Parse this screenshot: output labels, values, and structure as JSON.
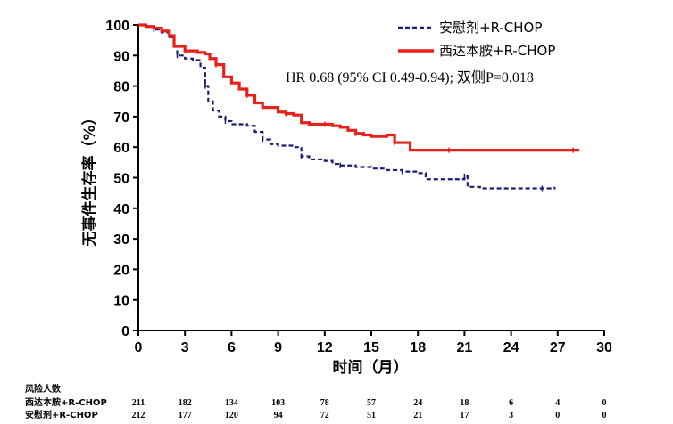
{
  "chart_data": {
    "type": "line",
    "xlabel": "时间（月）",
    "ylabel": "无事件生存率（%）",
    "xlim": [
      0,
      30
    ],
    "ylim": [
      0,
      100
    ],
    "xticks": [
      "0",
      "3",
      "6",
      "9",
      "12",
      "15",
      "18",
      "21",
      "24",
      "27",
      "30"
    ],
    "yticks": [
      "0",
      "10",
      "20",
      "30",
      "40",
      "50",
      "60",
      "70",
      "80",
      "90",
      "100"
    ],
    "annotation": "HR 0.68 (95% CI 0.49-0.94); 双侧P=0.018",
    "legend_position": "top-right",
    "series": [
      {
        "name": "安慰剂+R-CHOP",
        "color": "#1c1f6e",
        "style": "dashed",
        "points": [
          [
            0,
            100
          ],
          [
            0.5,
            99.5
          ],
          [
            1,
            98.5
          ],
          [
            1.5,
            97.5
          ],
          [
            2,
            96
          ],
          [
            2.3,
            93
          ],
          [
            2.5,
            90
          ],
          [
            3,
            89
          ],
          [
            3.5,
            88.5
          ],
          [
            4,
            86
          ],
          [
            4.3,
            80
          ],
          [
            4.5,
            75
          ],
          [
            4.8,
            72
          ],
          [
            5.2,
            70
          ],
          [
            5.6,
            68.5
          ],
          [
            6,
            67.5
          ],
          [
            7,
            67
          ],
          [
            7.5,
            65
          ],
          [
            8,
            62.5
          ],
          [
            8.5,
            61
          ],
          [
            9,
            60.5
          ],
          [
            10,
            60
          ],
          [
            10.5,
            57
          ],
          [
            11,
            56
          ],
          [
            12,
            55.5
          ],
          [
            12.5,
            54.5
          ],
          [
            13,
            54
          ],
          [
            14,
            53.5
          ],
          [
            15,
            53
          ],
          [
            16,
            52.5
          ],
          [
            17,
            52
          ],
          [
            18,
            51.5
          ],
          [
            18.5,
            49.5
          ],
          [
            20,
            49.5
          ],
          [
            21,
            50.5
          ],
          [
            21.2,
            47
          ],
          [
            22,
            46.5
          ],
          [
            24,
            46.5
          ],
          [
            26,
            46.5
          ],
          [
            26.8,
            47
          ]
        ]
      },
      {
        "name": "西达本胺+R-CHOP",
        "color": "#e8201b",
        "style": "solid",
        "points": [
          [
            0,
            100
          ],
          [
            0.5,
            99.5
          ],
          [
            1,
            99
          ],
          [
            1.5,
            98
          ],
          [
            2,
            96.5
          ],
          [
            2.3,
            93
          ],
          [
            3,
            91.5
          ],
          [
            3.8,
            91
          ],
          [
            4.3,
            90.5
          ],
          [
            4.6,
            89
          ],
          [
            5,
            87
          ],
          [
            5.5,
            83
          ],
          [
            6,
            81
          ],
          [
            6.5,
            79
          ],
          [
            7,
            77
          ],
          [
            7.5,
            74.5
          ],
          [
            8,
            73
          ],
          [
            9,
            71.5
          ],
          [
            9.5,
            71
          ],
          [
            10,
            70.5
          ],
          [
            10.5,
            68
          ],
          [
            11,
            67.5
          ],
          [
            12,
            67.5
          ],
          [
            12.5,
            67
          ],
          [
            13,
            66.5
          ],
          [
            13.5,
            65.5
          ],
          [
            14,
            64.5
          ],
          [
            14.5,
            64
          ],
          [
            15,
            63.5
          ],
          [
            16,
            64
          ],
          [
            16.5,
            61.5
          ],
          [
            17,
            61.5
          ],
          [
            17.5,
            59
          ],
          [
            18,
            59
          ],
          [
            20,
            59
          ],
          [
            22,
            59
          ],
          [
            24,
            59
          ],
          [
            26,
            59
          ],
          [
            28,
            59
          ],
          [
            28.3,
            59.5
          ]
        ]
      }
    ]
  },
  "risk_table": {
    "title": "风险人数",
    "rows": [
      {
        "label": "西达本胺+R-CHOP",
        "values": [
          "211",
          "182",
          "134",
          "103",
          "78",
          "57",
          "24",
          "18",
          "6",
          "4",
          "0"
        ]
      },
      {
        "label": "安慰剂+R-CHOP",
        "values": [
          "212",
          "177",
          "120",
          "94",
          "72",
          "51",
          "21",
          "17",
          "3",
          "0",
          "0"
        ]
      }
    ]
  }
}
